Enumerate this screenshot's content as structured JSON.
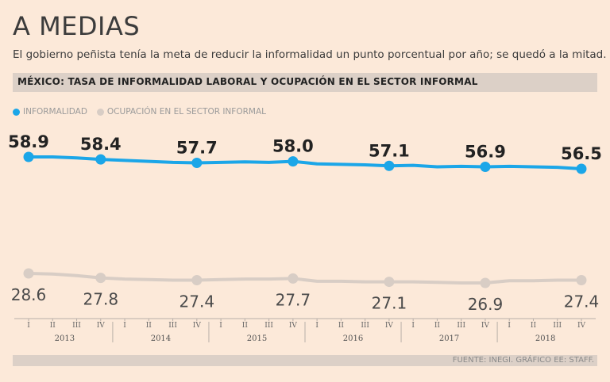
{
  "header": {
    "headline": "A MEDIAS",
    "subtitle": "El gobierno peñista tenía la meta de reducir la informalidad un punto porcentual por año; se quedó a la mitad."
  },
  "source": "FUENTE: INEGI. GRÁFICO EE: STAFF.",
  "colors": {
    "informalidad": "#1ba6e8",
    "ocupacion": "#d8cdc5",
    "background": "#fce9d9"
  },
  "chart_data": {
    "type": "line",
    "title": "MÉXICO: TASA DE INFORMALIDAD LABORAL Y OCUPACIÓN EN EL SECTOR INFORMAL",
    "quarter_labels": [
      "I",
      "II",
      "III",
      "IV",
      "I",
      "II",
      "III",
      "IV",
      "I",
      "II",
      "III",
      "IV",
      "I",
      "II",
      "III",
      "IV",
      "I",
      "II",
      "III",
      "IV",
      "I",
      "II",
      "III",
      "IV"
    ],
    "years": [
      "2013",
      "2014",
      "2015",
      "2016",
      "2017",
      "2018"
    ],
    "series": [
      {
        "name": "INFORMALIDAD",
        "values": [
          58.9,
          58.9,
          58.7,
          58.4,
          58.2,
          58.0,
          57.8,
          57.7,
          57.8,
          57.9,
          57.8,
          58.0,
          57.5,
          57.4,
          57.3,
          57.1,
          57.2,
          56.9,
          57.0,
          56.9,
          57.0,
          56.9,
          56.8,
          56.5
        ],
        "labels": [
          {
            "q": 0,
            "text": "58.9"
          },
          {
            "q": 3,
            "text": "58.4"
          },
          {
            "q": 7,
            "text": "57.7"
          },
          {
            "q": 11,
            "text": "58.0"
          },
          {
            "q": 15,
            "text": "57.1"
          },
          {
            "q": 19,
            "text": "56.9"
          },
          {
            "q": 23,
            "text": "56.5"
          }
        ]
      },
      {
        "name": "OCUPACIÓN EN EL SECTOR INFORMAL",
        "values": [
          28.6,
          28.5,
          28.2,
          27.8,
          27.6,
          27.5,
          27.4,
          27.4,
          27.5,
          27.6,
          27.6,
          27.7,
          27.2,
          27.2,
          27.1,
          27.1,
          27.1,
          27.0,
          26.9,
          26.9,
          27.3,
          27.3,
          27.4,
          27.4
        ],
        "labels": [
          {
            "q": 0,
            "text": "28.6"
          },
          {
            "q": 3,
            "text": "27.8"
          },
          {
            "q": 7,
            "text": "27.4"
          },
          {
            "q": 11,
            "text": "27.7"
          },
          {
            "q": 15,
            "text": "27.1"
          },
          {
            "q": 19,
            "text": "26.9"
          },
          {
            "q": 23,
            "text": "27.4"
          }
        ]
      }
    ]
  }
}
